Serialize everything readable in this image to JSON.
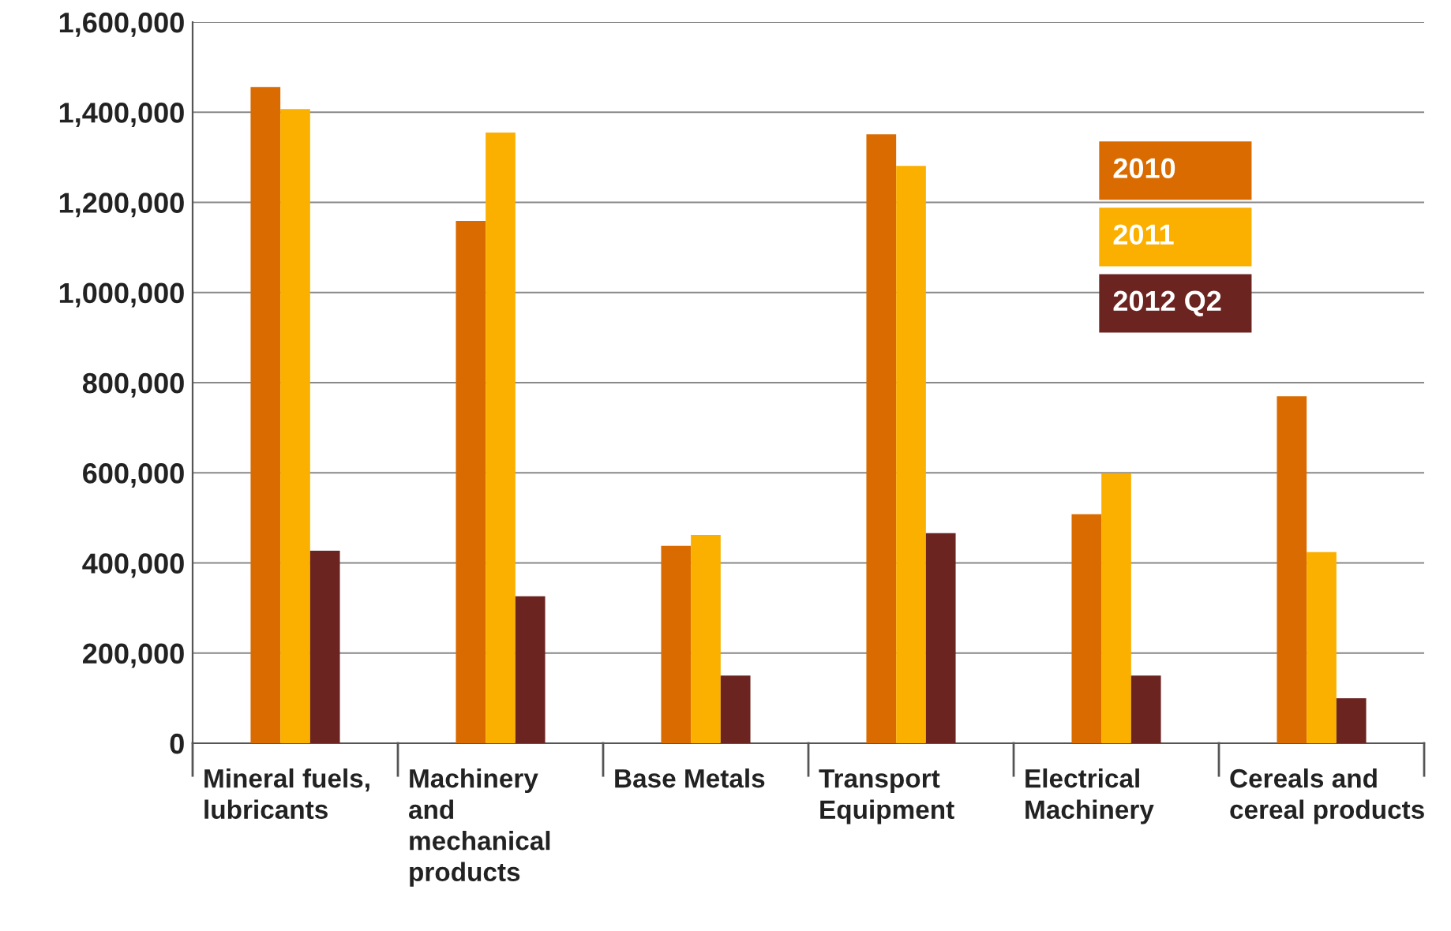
{
  "chart_data": {
    "type": "bar",
    "categories": [
      "Mineral fuels,\nlubricants",
      "Machinery\nand\nmechanical\nproducts",
      "Base Metals",
      "Transport\nEquipment",
      "Electrical\nMachinery",
      "Cereals and\ncereal products"
    ],
    "series": [
      {
        "name": "2010",
        "color": "#d96b00",
        "values": [
          1456000,
          1159000,
          438000,
          1351000,
          508000,
          770000
        ]
      },
      {
        "name": "2011",
        "color": "#fbb000",
        "values": [
          1407000,
          1355000,
          462000,
          1281000,
          599000,
          424000
        ]
      },
      {
        "name": "2012 Q2",
        "color": "#6b2420",
        "values": [
          427000,
          326000,
          150000,
          466000,
          150000,
          100000
        ]
      }
    ],
    "ylim": [
      0,
      1600000
    ],
    "yticks": [
      {
        "value": 0,
        "label": "0"
      },
      {
        "value": 200000,
        "label": "200,000"
      },
      {
        "value": 400000,
        "label": "400,000"
      },
      {
        "value": 600000,
        "label": "600,000"
      },
      {
        "value": 800000,
        "label": "800,000"
      },
      {
        "value": 1000000,
        "label": "1,000,000"
      },
      {
        "value": 1200000,
        "label": "1,200,000"
      },
      {
        "value": 1400000,
        "label": "1,400,000"
      },
      {
        "value": 1600000,
        "label": "1,600,000"
      }
    ],
    "grid": "y",
    "legend": "top right"
  }
}
